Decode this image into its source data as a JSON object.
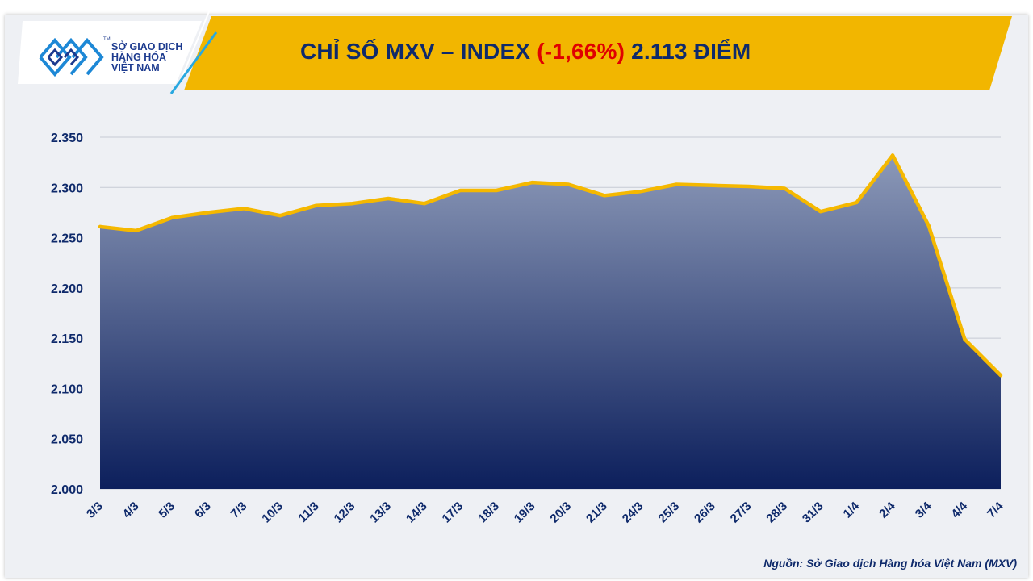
{
  "header": {
    "logo_lines": [
      "SỞ GIAO DỊCH",
      "HÀNG HÓA",
      "VIỆT NAM"
    ],
    "logo_mark": "TM",
    "title_prefix": "CHỈ SỐ MXV – INDEX",
    "title_change": "(-1,66%)",
    "title_suffix": "2.113 ĐIỂM"
  },
  "colors": {
    "banner": "#f2b600",
    "title": "#0f2a6b",
    "change": "#e00000",
    "line": "#f5b800",
    "area_top": "#8c99b8",
    "area_bottom": "#0c1f5c"
  },
  "chart_data": {
    "type": "area",
    "title": "CHỈ SỐ MXV – INDEX (-1,66%) 2.113 ĐIỂM",
    "xlabel": "",
    "ylabel": "",
    "categories": [
      "3/3",
      "4/3",
      "5/3",
      "6/3",
      "7/3",
      "10/3",
      "11/3",
      "12/3",
      "13/3",
      "14/3",
      "17/3",
      "18/3",
      "19/3",
      "20/3",
      "21/3",
      "24/3",
      "25/3",
      "26/3",
      "27/3",
      "28/3",
      "31/3",
      "1/4",
      "2/4",
      "3/4",
      "4/4",
      "7/4"
    ],
    "values": [
      2261,
      2257,
      2270,
      2275,
      2279,
      2272,
      2282,
      2284,
      2289,
      2284,
      2297,
      2297,
      2305,
      2303,
      2292,
      2296,
      2303,
      2302,
      2301,
      2299,
      2276,
      2285,
      2332,
      2262,
      2149,
      2113
    ],
    "ylim": [
      2000,
      2350
    ],
    "yticks": [
      2000,
      2050,
      2100,
      2150,
      2200,
      2250,
      2300,
      2350
    ],
    "ytick_labels": [
      "2.000",
      "2.050",
      "2.100",
      "2.150",
      "2.200",
      "2.250",
      "2.300",
      "2.350"
    ],
    "grid": true
  },
  "footer": {
    "source": "Nguồn: Sở Giao dịch Hàng hóa Việt Nam (MXV)"
  }
}
